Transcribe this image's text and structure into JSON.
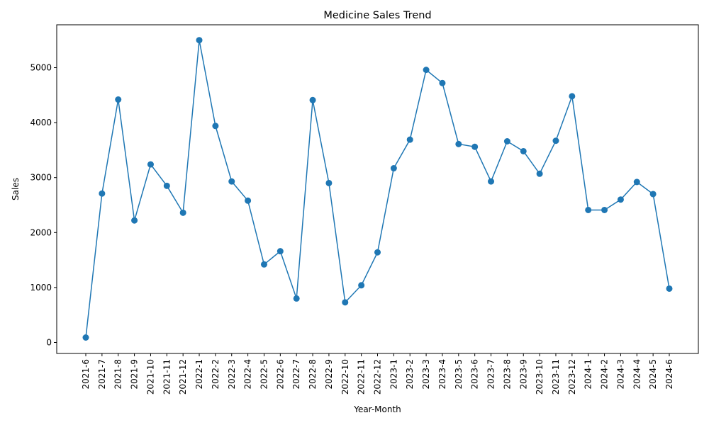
{
  "chart_data": {
    "type": "line",
    "title": "Medicine Sales Trend",
    "xlabel": "Year-Month",
    "ylabel": "Sales",
    "ylim": [
      -200,
      5780
    ],
    "yticks": [
      0,
      1000,
      2000,
      3000,
      4000,
      5000
    ],
    "grid": false,
    "marker": "circle",
    "color": "#1f77b4",
    "categories": [
      "2021-6",
      "2021-7",
      "2021-8",
      "2021-9",
      "2021-10",
      "2021-11",
      "2021-12",
      "2022-1",
      "2022-2",
      "2022-3",
      "2022-4",
      "2022-5",
      "2022-6",
      "2022-7",
      "2022-8",
      "2022-9",
      "2022-10",
      "2022-11",
      "2022-12",
      "2023-1",
      "2023-2",
      "2023-3",
      "2023-4",
      "2023-5",
      "2023-6",
      "2023-7",
      "2023-8",
      "2023-9",
      "2023-10",
      "2023-11",
      "2023-12",
      "2024-1",
      "2024-2",
      "2024-3",
      "2024-4",
      "2024-5",
      "2024-6"
    ],
    "values": [
      90,
      2710,
      4420,
      2220,
      3240,
      2850,
      2360,
      5500,
      3940,
      2930,
      2580,
      1420,
      1660,
      800,
      4410,
      2900,
      730,
      1040,
      1640,
      3170,
      3690,
      4960,
      4720,
      3610,
      3560,
      2930,
      3660,
      3480,
      3070,
      3670,
      4480,
      2410,
      2410,
      2600,
      2920,
      2700,
      980
    ]
  }
}
